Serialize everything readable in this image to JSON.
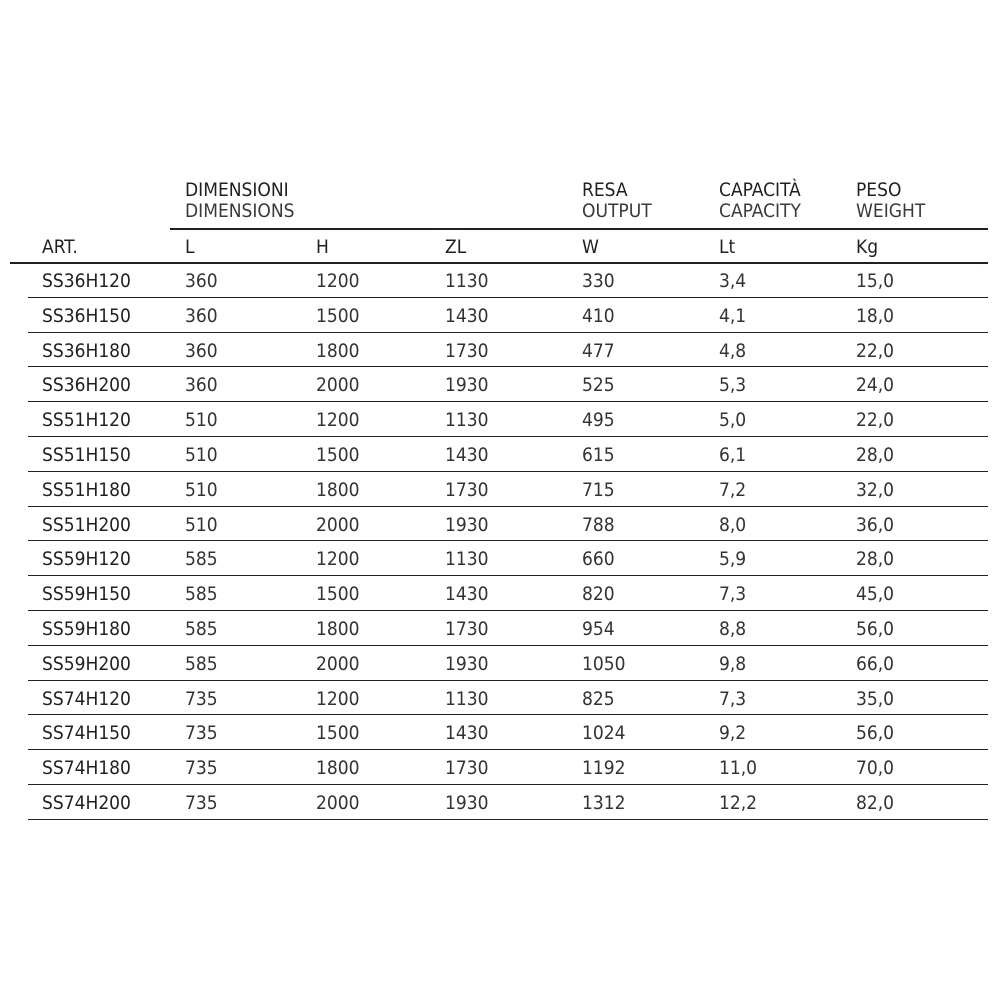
{
  "header": {
    "groups": [
      {
        "it": "DIMENSIONI",
        "en": "DIMENSIONS"
      },
      {
        "it": "RESA",
        "en": "OUTPUT"
      },
      {
        "it": "CAPACITÀ",
        "en": "CAPACITY"
      },
      {
        "it": "PESO",
        "en": "WEIGHT"
      }
    ],
    "columns": [
      "ART.",
      "L",
      "H",
      "ZL",
      "W",
      "Lt",
      "Kg"
    ]
  },
  "rows": [
    [
      "SS36H120",
      "360",
      "1200",
      "1130",
      "330",
      "3,4",
      "15,0"
    ],
    [
      "SS36H150",
      "360",
      "1500",
      "1430",
      "410",
      "4,1",
      "18,0"
    ],
    [
      "SS36H180",
      "360",
      "1800",
      "1730",
      "477",
      "4,8",
      "22,0"
    ],
    [
      "SS36H200",
      "360",
      "2000",
      "1930",
      "525",
      "5,3",
      "24,0"
    ],
    [
      "SS51H120",
      "510",
      "1200",
      "1130",
      "495",
      "5,0",
      "22,0"
    ],
    [
      "SS51H150",
      "510",
      "1500",
      "1430",
      "615",
      "6,1",
      "28,0"
    ],
    [
      "SS51H180",
      "510",
      "1800",
      "1730",
      "715",
      "7,2",
      "32,0"
    ],
    [
      "SS51H200",
      "510",
      "2000",
      "1930",
      "788",
      "8,0",
      "36,0"
    ],
    [
      "SS59H120",
      "585",
      "1200",
      "1130",
      "660",
      "5,9",
      "28,0"
    ],
    [
      "SS59H150",
      "585",
      "1500",
      "1430",
      "820",
      "7,3",
      "45,0"
    ],
    [
      "SS59H180",
      "585",
      "1800",
      "1730",
      "954",
      "8,8",
      "56,0"
    ],
    [
      "SS59H200",
      "585",
      "2000",
      "1930",
      "1050",
      "9,8",
      "66,0"
    ],
    [
      "SS74H120",
      "735",
      "1200",
      "1130",
      "825",
      "7,3",
      "35,0"
    ],
    [
      "SS74H150",
      "735",
      "1500",
      "1430",
      "1024",
      "9,2",
      "56,0"
    ],
    [
      "SS74H180",
      "735",
      "1800",
      "1730",
      "1192",
      "11,0",
      "70,0"
    ],
    [
      "SS74H200",
      "735",
      "2000",
      "1930",
      "1312",
      "12,2",
      "82,0"
    ]
  ]
}
